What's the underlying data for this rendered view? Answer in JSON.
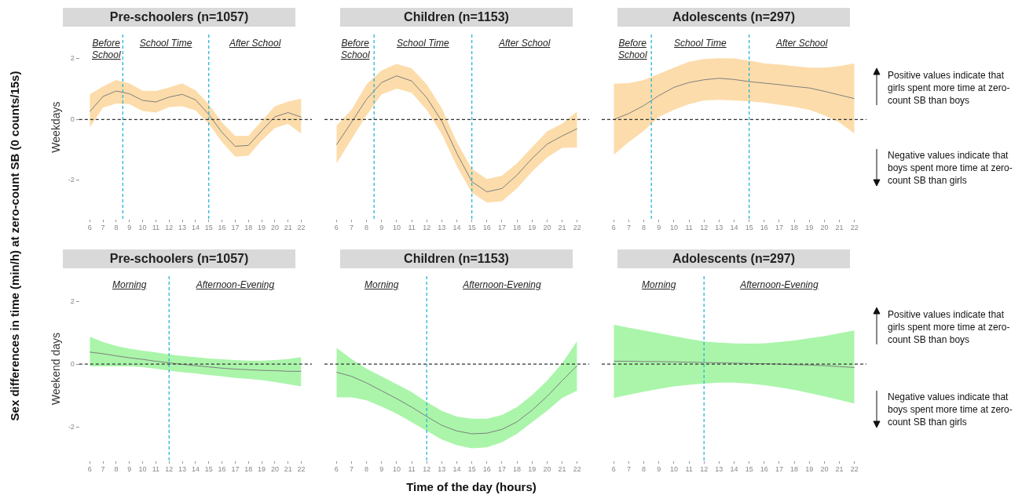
{
  "chart_data": [
    {
      "type": "line",
      "title": "Pre-schoolers (n=1057)",
      "ylabel": "Weekdays",
      "x": [
        6,
        7,
        8,
        9,
        10,
        11,
        12,
        13,
        14,
        15,
        16,
        17,
        18,
        19,
        20,
        21,
        22
      ],
      "series": [
        {
          "color": "#7f7f7f",
          "values": [
            0.26,
            0.76,
            0.94,
            0.85,
            0.63,
            0.58,
            0.74,
            0.83,
            0.65,
            0.17,
            -0.42,
            -0.88,
            -0.85,
            -0.37,
            0.09,
            0.23,
            0.08
          ],
          "lower": [
            -0.26,
            0.39,
            0.53,
            0.51,
            0.28,
            0.23,
            0.41,
            0.44,
            0.3,
            -0.14,
            -0.74,
            -1.22,
            -1.19,
            -0.69,
            -0.28,
            -0.14,
            -0.47
          ],
          "upper": [
            0.83,
            1.09,
            1.3,
            1.19,
            0.95,
            0.94,
            1.06,
            1.19,
            0.96,
            0.51,
            -0.09,
            -0.54,
            -0.54,
            -0.05,
            0.44,
            0.59,
            0.69
          ]
        }
      ],
      "xlim": [
        5.2,
        22.8
      ],
      "ylim": [
        -3.3,
        2.8
      ],
      "xticks": [
        6,
        7,
        8,
        9,
        10,
        11,
        12,
        13,
        14,
        15,
        16,
        17,
        18,
        19,
        20,
        21,
        22
      ],
      "yticks": [
        -2,
        0,
        2
      ],
      "ref_lines": [
        {
          "axis": "x",
          "value": 8.5,
          "color": "#29b6d8",
          "line_style": "dashed"
        },
        {
          "axis": "x",
          "value": 15,
          "color": "#29b6d8",
          "line_style": "dashed"
        },
        {
          "axis": "y",
          "value": 0,
          "color": "#333333",
          "line_style": "dashed"
        }
      ],
      "annotations": [
        "Before School",
        "School Time",
        "After School"
      ]
    },
    {
      "type": "line",
      "title": "Children (n=1153)",
      "x": [
        6,
        7,
        8,
        9,
        10,
        11,
        12,
        13,
        14,
        15,
        16,
        17,
        18,
        19,
        20,
        21,
        22
      ],
      "series": [
        {
          "color": "#7f7f7f",
          "values": [
            -0.83,
            -0.09,
            0.67,
            1.22,
            1.44,
            1.27,
            0.72,
            -0.05,
            -1.11,
            -2.04,
            -2.38,
            -2.27,
            -1.83,
            -1.28,
            -0.81,
            -0.54,
            -0.3
          ],
          "lower": [
            -1.45,
            -0.65,
            0.14,
            0.83,
            1.02,
            0.88,
            0.32,
            -0.48,
            -1.53,
            -2.41,
            -2.73,
            -2.69,
            -2.27,
            -1.71,
            -1.25,
            -0.93,
            -0.92
          ],
          "upper": [
            -0.2,
            0.32,
            1.16,
            1.62,
            1.83,
            1.69,
            1.16,
            0.37,
            -0.74,
            -1.62,
            -1.96,
            -1.85,
            -1.44,
            -0.91,
            -0.39,
            -0.14,
            0.27
          ]
        }
      ],
      "xlim": [
        5.2,
        22.8
      ],
      "ylim": [
        -3.3,
        2.8
      ],
      "xticks": [
        6,
        7,
        8,
        9,
        10,
        11,
        12,
        13,
        14,
        15,
        16,
        17,
        18,
        19,
        20,
        21,
        22
      ],
      "yticks": [
        -2,
        0,
        2
      ],
      "tick_labels": "x",
      "ref_lines": [
        {
          "axis": "x",
          "value": 8.5,
          "color": "#29b6d8",
          "line_style": "dashed"
        },
        {
          "axis": "x",
          "value": 15,
          "color": "#29b6d8",
          "line_style": "dashed"
        },
        {
          "axis": "y",
          "value": 0,
          "color": "#333333",
          "line_style": "dashed"
        }
      ],
      "annotations": [
        "Before School",
        "School Time",
        "After School"
      ]
    },
    {
      "type": "line",
      "title": "Adolescents (n=297)",
      "x": [
        6,
        7,
        8,
        9,
        10,
        11,
        12,
        13,
        14,
        15,
        16,
        17,
        18,
        19,
        20,
        21,
        22
      ],
      "series": [
        {
          "color": "#7f7f7f",
          "values": [
            0,
            0.2,
            0.46,
            0.79,
            1.06,
            1.22,
            1.31,
            1.36,
            1.32,
            1.25,
            1.2,
            1.15,
            1.09,
            1.04,
            0.93,
            0.81,
            0.69
          ],
          "lower": [
            -1.16,
            -0.74,
            -0.37,
            0.09,
            0.32,
            0.51,
            0.63,
            0.65,
            0.63,
            0.6,
            0.56,
            0.49,
            0.42,
            0.32,
            0.14,
            -0.09,
            -0.46
          ],
          "upper": [
            1.18,
            1.2,
            1.3,
            1.5,
            1.71,
            1.9,
            1.99,
            2.02,
            2.01,
            1.94,
            1.85,
            1.81,
            1.76,
            1.71,
            1.71,
            1.76,
            1.85
          ]
        }
      ],
      "xlim": [
        5.2,
        22.8
      ],
      "ylim": [
        -3.3,
        2.8
      ],
      "xticks": [
        6,
        7,
        8,
        9,
        10,
        11,
        12,
        13,
        14,
        15,
        16,
        17,
        18,
        19,
        20,
        21,
        22
      ],
      "yticks": [
        -2,
        0,
        2
      ],
      "tick_labels": "x",
      "ref_lines": [
        {
          "axis": "x",
          "value": 8.5,
          "color": "#29b6d8",
          "line_style": "dashed"
        },
        {
          "axis": "x",
          "value": 15,
          "color": "#29b6d8",
          "line_style": "dashed"
        },
        {
          "axis": "y",
          "value": 0,
          "color": "#333333",
          "line_style": "dashed"
        }
      ],
      "annotations": [
        "Before School",
        "School Time",
        "After School"
      ]
    },
    {
      "type": "line",
      "title": "Pre-schoolers (n=1057)",
      "ylabel": "Weekend days",
      "x": [
        6,
        7,
        8,
        9,
        10,
        11,
        12,
        13,
        14,
        15,
        16,
        17,
        18,
        19,
        20,
        21,
        22
      ],
      "series": [
        {
          "color": "#7f7f7f",
          "values": [
            0.38,
            0.33,
            0.26,
            0.2,
            0.15,
            0.09,
            0.04,
            -0.01,
            -0.05,
            -0.09,
            -0.13,
            -0.16,
            -0.18,
            -0.2,
            -0.21,
            -0.23,
            -0.23
          ],
          "lower": [
            -0.07,
            -0.07,
            -0.07,
            -0.07,
            -0.1,
            -0.15,
            -0.21,
            -0.26,
            -0.3,
            -0.35,
            -0.39,
            -0.44,
            -0.47,
            -0.51,
            -0.57,
            -0.64,
            -0.71
          ],
          "upper": [
            0.87,
            0.7,
            0.58,
            0.49,
            0.43,
            0.37,
            0.31,
            0.26,
            0.22,
            0.18,
            0.15,
            0.13,
            0.11,
            0.11,
            0.13,
            0.16,
            0.22
          ]
        }
      ],
      "xlim": [
        5.2,
        22.8
      ],
      "ylim": [
        -3.1,
        2.8
      ],
      "xticks": [
        6,
        7,
        8,
        9,
        10,
        11,
        12,
        13,
        14,
        15,
        16,
        17,
        18,
        19,
        20,
        21,
        22
      ],
      "yticks": [
        -2,
        0,
        2
      ],
      "ref_lines": [
        {
          "axis": "x",
          "value": 12,
          "color": "#29b6d8",
          "line_style": "dashed"
        },
        {
          "axis": "y",
          "value": 0,
          "color": "#333333",
          "line_style": "dashed"
        }
      ],
      "annotations": [
        "Morning",
        "Afternoon-Evening"
      ]
    },
    {
      "type": "line",
      "title": "Children (n=1153)",
      "x": [
        6,
        7,
        8,
        9,
        10,
        11,
        12,
        13,
        14,
        15,
        16,
        17,
        18,
        19,
        20,
        21,
        22
      ],
      "series": [
        {
          "color": "#7f7f7f",
          "values": [
            -0.26,
            -0.39,
            -0.6,
            -0.85,
            -1.1,
            -1.37,
            -1.67,
            -1.95,
            -2.13,
            -2.22,
            -2.2,
            -2.08,
            -1.84,
            -1.47,
            -1.03,
            -0.53,
            -0.05
          ],
          "lower": [
            -1.06,
            -1.06,
            -1.15,
            -1.35,
            -1.58,
            -1.85,
            -2.13,
            -2.4,
            -2.58,
            -2.68,
            -2.65,
            -2.49,
            -2.22,
            -1.85,
            -1.49,
            -1.08,
            -0.85
          ],
          "upper": [
            0.52,
            0.16,
            -0.15,
            -0.39,
            -0.64,
            -0.89,
            -1.21,
            -1.49,
            -1.67,
            -1.74,
            -1.74,
            -1.62,
            -1.37,
            -0.99,
            -0.53,
            0.02,
            0.73
          ]
        }
      ],
      "xlim": [
        5.2,
        22.8
      ],
      "ylim": [
        -3.1,
        2.8
      ],
      "xticks": [
        6,
        7,
        8,
        9,
        10,
        11,
        12,
        13,
        14,
        15,
        16,
        17,
        18,
        19,
        20,
        21,
        22
      ],
      "yticks": [
        -2,
        0,
        2
      ],
      "tick_labels": "x",
      "ref_lines": [
        {
          "axis": "x",
          "value": 12,
          "color": "#29b6d8",
          "line_style": "dashed"
        },
        {
          "axis": "y",
          "value": 0,
          "color": "#333333",
          "line_style": "dashed"
        }
      ],
      "annotations": [
        "Morning",
        "Afternoon-Evening"
      ]
    },
    {
      "type": "line",
      "title": "Adolescents (n=297)",
      "x": [
        6,
        7,
        8,
        9,
        10,
        11,
        12,
        13,
        14,
        15,
        16,
        17,
        18,
        19,
        20,
        21,
        22
      ],
      "series": [
        {
          "color": "#7f7f7f",
          "values": [
            0.09,
            0.09,
            0.08,
            0.08,
            0.07,
            0.06,
            0.05,
            0.04,
            0.03,
            0.02,
            0.01,
            0,
            -0.02,
            -0.03,
            -0.05,
            -0.08,
            -0.11
          ],
          "lower": [
            -1.08,
            -0.98,
            -0.88,
            -0.79,
            -0.71,
            -0.66,
            -0.62,
            -0.59,
            -0.59,
            -0.62,
            -0.67,
            -0.74,
            -0.82,
            -0.92,
            -1.03,
            -1.14,
            -1.26
          ],
          "upper": [
            1.25,
            1.16,
            1.07,
            0.98,
            0.89,
            0.8,
            0.72,
            0.68,
            0.66,
            0.65,
            0.66,
            0.7,
            0.75,
            0.82,
            0.89,
            0.98,
            1.07
          ]
        }
      ],
      "xlim": [
        5.2,
        22.8
      ],
      "ylim": [
        -3.1,
        2.8
      ],
      "xticks": [
        6,
        7,
        8,
        9,
        10,
        11,
        12,
        13,
        14,
        15,
        16,
        17,
        18,
        19,
        20,
        21,
        22
      ],
      "yticks": [
        -2,
        0,
        2
      ],
      "tick_labels": "x",
      "ref_lines": [
        {
          "axis": "x",
          "value": 12,
          "color": "#29b6d8",
          "line_style": "dashed"
        },
        {
          "axis": "y",
          "value": 0,
          "color": "#333333",
          "line_style": "dashed"
        }
      ],
      "annotations": [
        "Morning",
        "Afternoon-Evening"
      ]
    },
    {
      "type": "other",
      "xlabel": "Time of the day (hours)",
      "ylabel": "Sex differences in time (min/h) at zero-count SB (0 counts/15s)",
      "annotations": [
        "Positive values indicate that girls spent more time at zero-count SB  than boys",
        "Negative values indicate that boys spent more time at zero-count SB than girls",
        "Positive values indicate that girls spent more time at zero-count SB  than boys",
        "Negative values indicate that boys spent more time at zero-count SB than girls"
      ]
    }
  ]
}
